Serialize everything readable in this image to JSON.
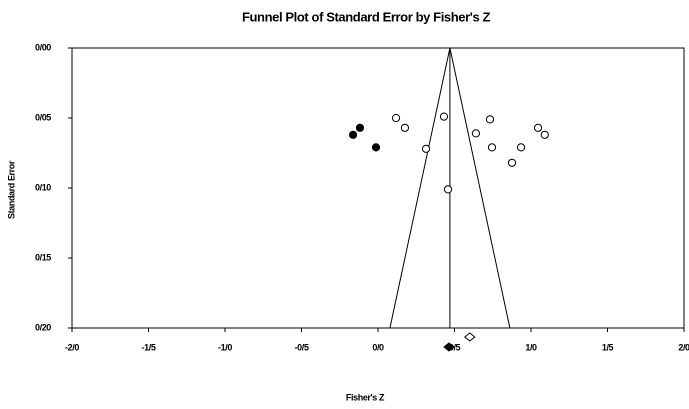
{
  "chart_data": {
    "type": "funnel",
    "title": "Funnel Plot of Standard Error by Fisher's Z",
    "x_label": "Fisher's Z",
    "y_label": "Standard Error",
    "xlim": [
      -2.0,
      2.0
    ],
    "ylim": [
      0,
      0.2
    ],
    "xticks": [
      {
        "value": -2.0,
        "label": "-2/0"
      },
      {
        "value": -1.5,
        "label": "-1/5"
      },
      {
        "value": -1.0,
        "label": "-1/0"
      },
      {
        "value": -0.5,
        "label": "-0/5"
      },
      {
        "value": 0.0,
        "label": "0/0"
      },
      {
        "value": 0.5,
        "label": "0/5"
      },
      {
        "value": 1.0,
        "label": "1/0"
      },
      {
        "value": 1.5,
        "label": "1/5"
      },
      {
        "value": 2.0,
        "label": "2/0"
      }
    ],
    "yticks": [
      {
        "value": 0,
        "label": "0/00"
      },
      {
        "value": 0.05,
        "label": "0/05"
      },
      {
        "value": 0.1,
        "label": "0/10"
      },
      {
        "value": 0.15,
        "label": "0/15"
      },
      {
        "value": 0.2,
        "label": "0/20"
      }
    ],
    "series": [
      {
        "color": "#ffffff",
        "x": [
          0.118,
          0.176,
          0.314,
          0.431,
          0.458,
          0.64,
          0.732,
          0.745,
          0.876,
          0.935,
          1.046,
          1.09
        ],
        "values": [
          0.05,
          0.057,
          0.072,
          0.049,
          0.101,
          0.061,
          0.051,
          0.071,
          0.082,
          0.071,
          0.057,
          0.062
        ]
      },
      {
        "color": "#000000",
        "x": [
          -0.118,
          -0.163,
          -0.013
        ],
        "values": [
          0.057,
          0.062,
          0.071
        ]
      }
    ],
    "funnel": {
      "x": [
        0.078,
        0.47,
        0.862
      ],
      "values": [
        0.2,
        0,
        0.2
      ]
    },
    "center_line": 0.47,
    "diamonds": [
      {
        "x": 0.6,
        "color": "#ffffff"
      },
      {
        "x": 0.464,
        "color": "#000000"
      }
    ]
  }
}
